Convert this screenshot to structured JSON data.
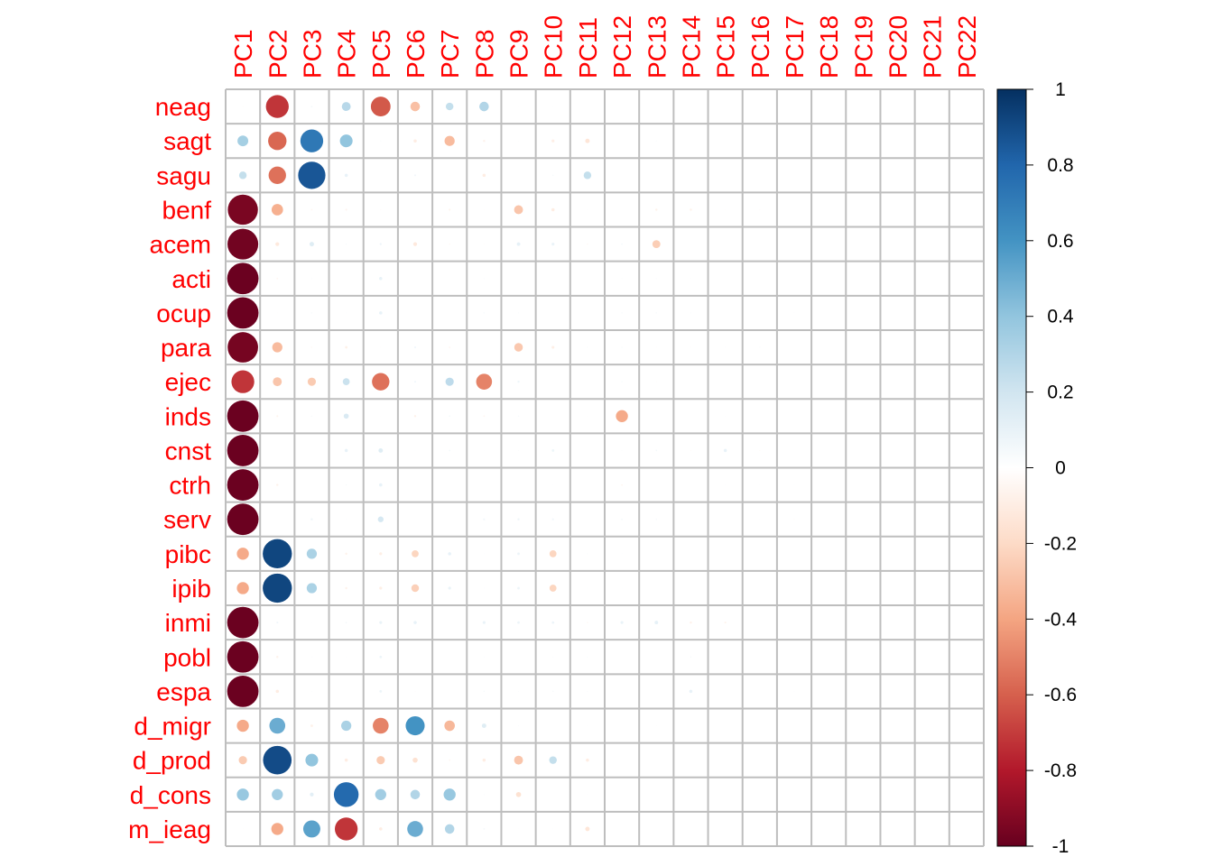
{
  "chart_data": {
    "type": "heatmap",
    "style": "circle-correlation-plot",
    "title": "",
    "row_labels": [
      "neag",
      "sagt",
      "sagu",
      "benf",
      "acem",
      "acti",
      "ocup",
      "para",
      "ejec",
      "inds",
      "cnst",
      "ctrh",
      "serv",
      "pibc",
      "ipib",
      "inmi",
      "pobl",
      "espa",
      "d_migr",
      "d_prod",
      "d_cons",
      "m_ieag"
    ],
    "col_labels": [
      "PC1",
      "PC2",
      "PC3",
      "PC4",
      "PC5",
      "PC6",
      "PC7",
      "PC8",
      "PC9",
      "PC10",
      "PC11",
      "PC12",
      "PC13",
      "PC14",
      "PC15",
      "PC16",
      "PC17",
      "PC18",
      "PC19",
      "PC20",
      "PC21",
      "PC22"
    ],
    "values": [
      [
        -0.03,
        -0.72,
        0.05,
        0.28,
        -0.62,
        -0.3,
        0.24,
        0.3,
        -0.02,
        0.02,
        0.0,
        0.01,
        0.0,
        0.0,
        0.0,
        0.0,
        0.0,
        0.0,
        0.0,
        0.0,
        0.0,
        0.0
      ],
      [
        0.34,
        -0.58,
        0.72,
        0.4,
        0.03,
        -0.1,
        -0.32,
        -0.07,
        0.02,
        -0.09,
        -0.14,
        0.0,
        0.03,
        0.0,
        0.0,
        0.0,
        0.0,
        0.0,
        0.0,
        0.0,
        0.0,
        0.0
      ],
      [
        0.24,
        -0.55,
        0.86,
        0.1,
        0.01,
        0.06,
        -0.02,
        -0.1,
        0.01,
        0.04,
        0.24,
        0.0,
        0.0,
        0.0,
        0.0,
        0.0,
        0.0,
        0.0,
        0.0,
        0.0,
        0.0,
        0.0
      ],
      [
        -0.95,
        -0.36,
        -0.05,
        -0.06,
        -0.03,
        -0.01,
        -0.06,
        -0.02,
        -0.28,
        -0.1,
        0.02,
        0.0,
        -0.07,
        -0.07,
        -0.02,
        -0.03,
        0.0,
        0.0,
        0.0,
        0.0,
        0.0,
        0.0
      ],
      [
        -0.97,
        -0.12,
        0.14,
        0.04,
        0.07,
        -0.12,
        -0.04,
        -0.03,
        0.11,
        0.09,
        -0.04,
        0.05,
        -0.25,
        0.0,
        0.0,
        0.0,
        0.0,
        0.0,
        0.0,
        0.0,
        0.0,
        0.0
      ],
      [
        -0.99,
        -0.05,
        0.03,
        0.0,
        0.1,
        0.0,
        0.0,
        0.03,
        0.0,
        0.0,
        0.0,
        0.03,
        0.03,
        0.02,
        0.0,
        0.0,
        0.0,
        0.0,
        0.0,
        0.0,
        0.0,
        0.0
      ],
      [
        -0.99,
        -0.02,
        0.04,
        0.02,
        0.1,
        0.0,
        0.0,
        0.04,
        0.03,
        0.0,
        0.0,
        0.04,
        0.04,
        0.03,
        0.0,
        0.0,
        0.02,
        0.0,
        0.0,
        0.0,
        0.0,
        0.0
      ],
      [
        -0.96,
        -0.32,
        -0.04,
        -0.08,
        -0.02,
        0.06,
        -0.05,
        0.0,
        -0.27,
        -0.09,
        0.03,
        0.04,
        -0.02,
        -0.02,
        0.02,
        0.03,
        0.0,
        0.0,
        0.0,
        0.0,
        0.0,
        0.0
      ],
      [
        -0.72,
        -0.28,
        -0.26,
        0.22,
        -0.55,
        0.06,
        0.26,
        -0.5,
        0.07,
        -0.02,
        0.02,
        0.04,
        -0.03,
        0.0,
        0.0,
        0.0,
        0.0,
        0.0,
        0.0,
        0.0,
        0.0,
        0.0
      ],
      [
        -0.99,
        -0.06,
        0.04,
        0.16,
        -0.02,
        -0.07,
        0.05,
        -0.05,
        0.04,
        0.0,
        -0.02,
        -0.38,
        0.0,
        0.0,
        0.02,
        0.0,
        0.0,
        0.0,
        0.0,
        0.0,
        0.0,
        0.0
      ],
      [
        -0.99,
        -0.01,
        0.01,
        0.1,
        0.14,
        0.02,
        0.05,
        0.02,
        0.03,
        0.08,
        0.0,
        0.03,
        0.05,
        -0.03,
        0.1,
        -0.03,
        0.0,
        0.0,
        0.0,
        0.0,
        0.0,
        0.0
      ],
      [
        -0.99,
        -0.07,
        0.0,
        0.04,
        0.1,
        0.0,
        0.0,
        0.0,
        0.0,
        0.02,
        0.0,
        -0.05,
        0.0,
        0.0,
        0.02,
        0.02,
        0.02,
        0.02,
        0.0,
        0.0,
        0.0,
        0.0
      ],
      [
        -0.99,
        0.01,
        0.07,
        0.02,
        0.18,
        0.0,
        0.0,
        0.06,
        0.07,
        0.06,
        0.0,
        0.05,
        0.04,
        0.0,
        0.0,
        0.02,
        -0.03,
        0.0,
        0.0,
        0.0,
        0.0,
        0.0
      ],
      [
        -0.38,
        0.92,
        0.32,
        -0.07,
        -0.09,
        -0.22,
        0.1,
        0.02,
        0.08,
        -0.22,
        0.03,
        0.02,
        0.0,
        0.0,
        0.0,
        0.0,
        0.0,
        0.0,
        0.0,
        0.0,
        0.0,
        0.0
      ],
      [
        -0.38,
        0.92,
        0.32,
        -0.07,
        -0.09,
        -0.24,
        0.09,
        0.02,
        0.08,
        -0.22,
        0.02,
        0.02,
        0.0,
        0.0,
        0.0,
        0.0,
        0.0,
        0.0,
        0.0,
        0.0,
        0.0,
        0.0
      ],
      [
        -0.99,
        0.06,
        0.02,
        0.05,
        0.09,
        0.1,
        0.0,
        0.09,
        0.08,
        0.08,
        -0.04,
        0.09,
        0.11,
        -0.07,
        -0.06,
        0.0,
        0.0,
        0.0,
        0.0,
        0.0,
        0.0,
        0.0
      ],
      [
        -0.99,
        -0.07,
        0.03,
        0.02,
        0.08,
        0.01,
        0.0,
        0.03,
        0.0,
        0.03,
        0.03,
        0.0,
        0.0,
        0.04,
        0.0,
        0.0,
        0.0,
        0.0,
        0.0,
        0.0,
        0.0,
        0.0
      ],
      [
        -0.99,
        -0.1,
        0.03,
        0.01,
        0.08,
        -0.03,
        0.0,
        0.04,
        0.03,
        0.04,
        0.03,
        0.0,
        0.0,
        0.1,
        0.0,
        0.0,
        0.02,
        0.0,
        0.0,
        0.0,
        0.0,
        0.0
      ],
      [
        -0.38,
        0.5,
        -0.08,
        0.32,
        -0.5,
        0.6,
        -0.33,
        0.14,
        0.03,
        0.0,
        0.02,
        0.0,
        0.02,
        0.0,
        0.0,
        0.0,
        0.0,
        0.0,
        0.0,
        0.0,
        0.0,
        0.0
      ],
      [
        -0.26,
        0.9,
        0.4,
        -0.1,
        -0.26,
        -0.16,
        -0.05,
        -0.1,
        -0.28,
        0.24,
        -0.1,
        0.0,
        0.0,
        0.0,
        0.0,
        0.0,
        0.0,
        0.0,
        0.0,
        0.0,
        0.0,
        0.0
      ],
      [
        0.38,
        0.35,
        0.12,
        0.78,
        0.35,
        0.3,
        0.38,
        0.03,
        -0.16,
        0.0,
        0.02,
        0.0,
        0.0,
        0.0,
        0.0,
        0.0,
        0.0,
        0.0,
        0.0,
        0.0,
        0.0,
        0.0
      ],
      [
        -0.02,
        -0.38,
        0.54,
        -0.72,
        -0.1,
        0.5,
        0.3,
        0.05,
        0.02,
        0.02,
        -0.14,
        0.0,
        0.0,
        0.0,
        0.0,
        0.0,
        0.0,
        0.0,
        0.0,
        0.0,
        0.0,
        0.0
      ]
    ],
    "value_range": [
      -1,
      1
    ],
    "colorbar": {
      "ticks": [
        "1",
        "0.8",
        "0.6",
        "0.4",
        "0.2",
        "0",
        "-0.2",
        "-0.4",
        "-0.6",
        "-0.8",
        "-1"
      ],
      "tick_values": [
        1,
        0.8,
        0.6,
        0.4,
        0.2,
        0,
        -0.2,
        -0.4,
        -0.6,
        -0.8,
        -1
      ],
      "placement": "right"
    },
    "palette": [
      "#67001F",
      "#B2182B",
      "#D6604D",
      "#F4A582",
      "#FDDBC7",
      "#FFFFFF",
      "#D1E5F0",
      "#92C5DE",
      "#4393C3",
      "#2166AC",
      "#053061"
    ],
    "label_color": "#FF0000",
    "grid_color": "#BEBEBE"
  }
}
